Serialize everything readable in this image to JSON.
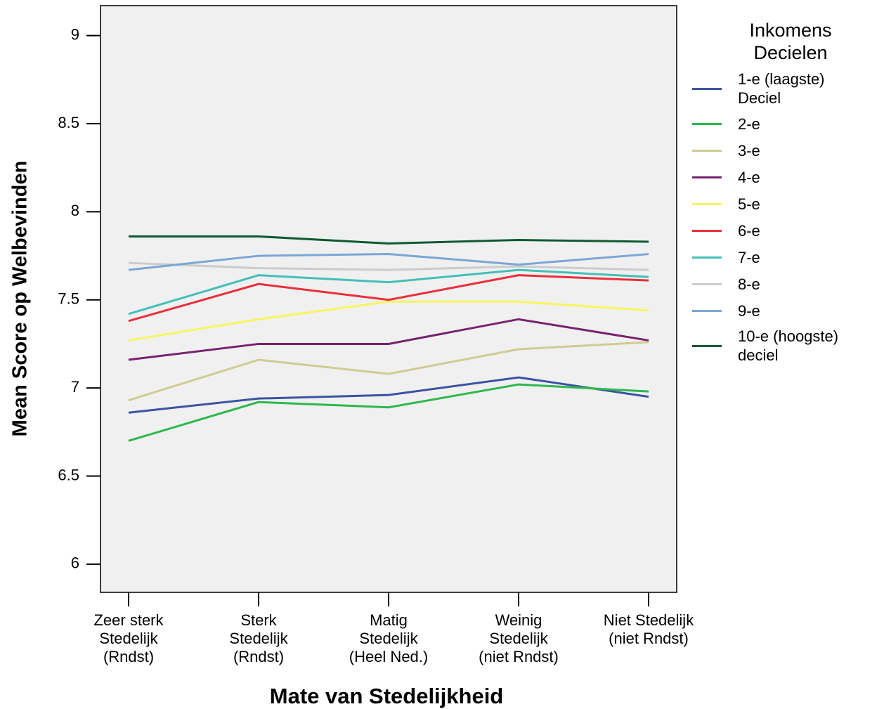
{
  "chart_data": {
    "type": "line",
    "x_label": "Mate van Stedelijkheid",
    "y_label": "Mean Score op Welbevinden",
    "legend_title": "Inkomens\nDecielen",
    "legend": "right",
    "grid": false,
    "categories": [
      "Zeer sterk\nStedelijk\n(Rndst)",
      "Sterk\nStedelijk\n(Rndst)",
      "Matig\nStedelijk\n(Heel Ned.)",
      "Weinig\nStedelijk\n(niet Rndst)",
      "Niet Stedelijk\n(niet Rndst)"
    ],
    "ylim": [
      5.84,
      9.17
    ],
    "yticks": [
      6,
      6.5,
      7,
      7.5,
      8,
      8.5,
      9
    ],
    "series": [
      {
        "name": "1-e (laagste)\nDeciel",
        "color": "#3a53a4",
        "values": [
          6.86,
          6.94,
          6.96,
          7.06,
          6.95
        ]
      },
      {
        "name": "2-e",
        "color": "#2db84d",
        "values": [
          6.7,
          6.92,
          6.89,
          7.02,
          6.98
        ]
      },
      {
        "name": "3-e",
        "color": "#d1cb93",
        "values": [
          6.93,
          7.16,
          7.08,
          7.22,
          7.26
        ]
      },
      {
        "name": "4-e",
        "color": "#782271",
        "values": [
          7.16,
          7.25,
          7.25,
          7.39,
          7.27
        ]
      },
      {
        "name": "5-e",
        "color": "#f8f65e",
        "values": [
          7.27,
          7.39,
          7.49,
          7.49,
          7.44
        ]
      },
      {
        "name": "6-e",
        "color": "#e8303a",
        "values": [
          7.38,
          7.59,
          7.5,
          7.64,
          7.61
        ]
      },
      {
        "name": "7-e",
        "color": "#43bfb7",
        "values": [
          7.42,
          7.64,
          7.6,
          7.67,
          7.63
        ]
      },
      {
        "name": "8-e",
        "color": "#cccccc",
        "values": [
          7.71,
          7.68,
          7.67,
          7.69,
          7.67
        ]
      },
      {
        "name": "9-e",
        "color": "#7aa7d6",
        "values": [
          7.67,
          7.75,
          7.76,
          7.7,
          7.76
        ]
      },
      {
        "name": "10-e (hoogste)\ndeciel",
        "color": "#0f5a30",
        "values": [
          7.86,
          7.86,
          7.82,
          7.84,
          7.83
        ]
      }
    ]
  }
}
